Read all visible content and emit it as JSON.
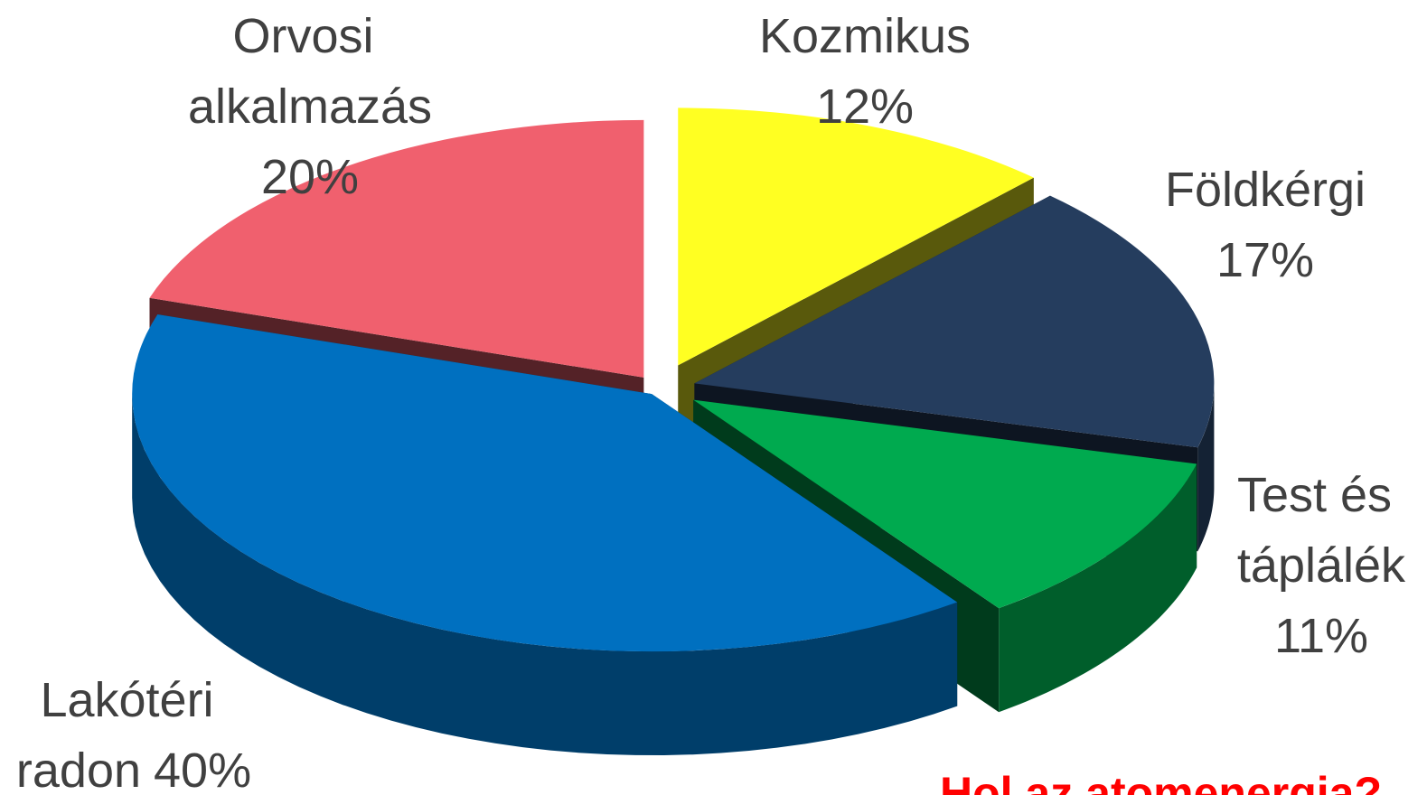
{
  "chart_data": {
    "type": "pie3d",
    "categories": [
      "Kozmikus",
      "Földkérgi",
      "Test és táplálék",
      "Lakótéri radon",
      "Orvosi alkalmazás"
    ],
    "values": [
      12,
      17,
      11,
      40,
      20
    ],
    "value_labels": [
      "12%",
      "17%",
      "11%",
      "40%",
      "20%"
    ],
    "colors": [
      "#ffff22",
      "#253d5e",
      "#00aa4f",
      "#0070c0",
      "#f0606e"
    ],
    "annotation": "Hol az atomenergia?"
  }
}
